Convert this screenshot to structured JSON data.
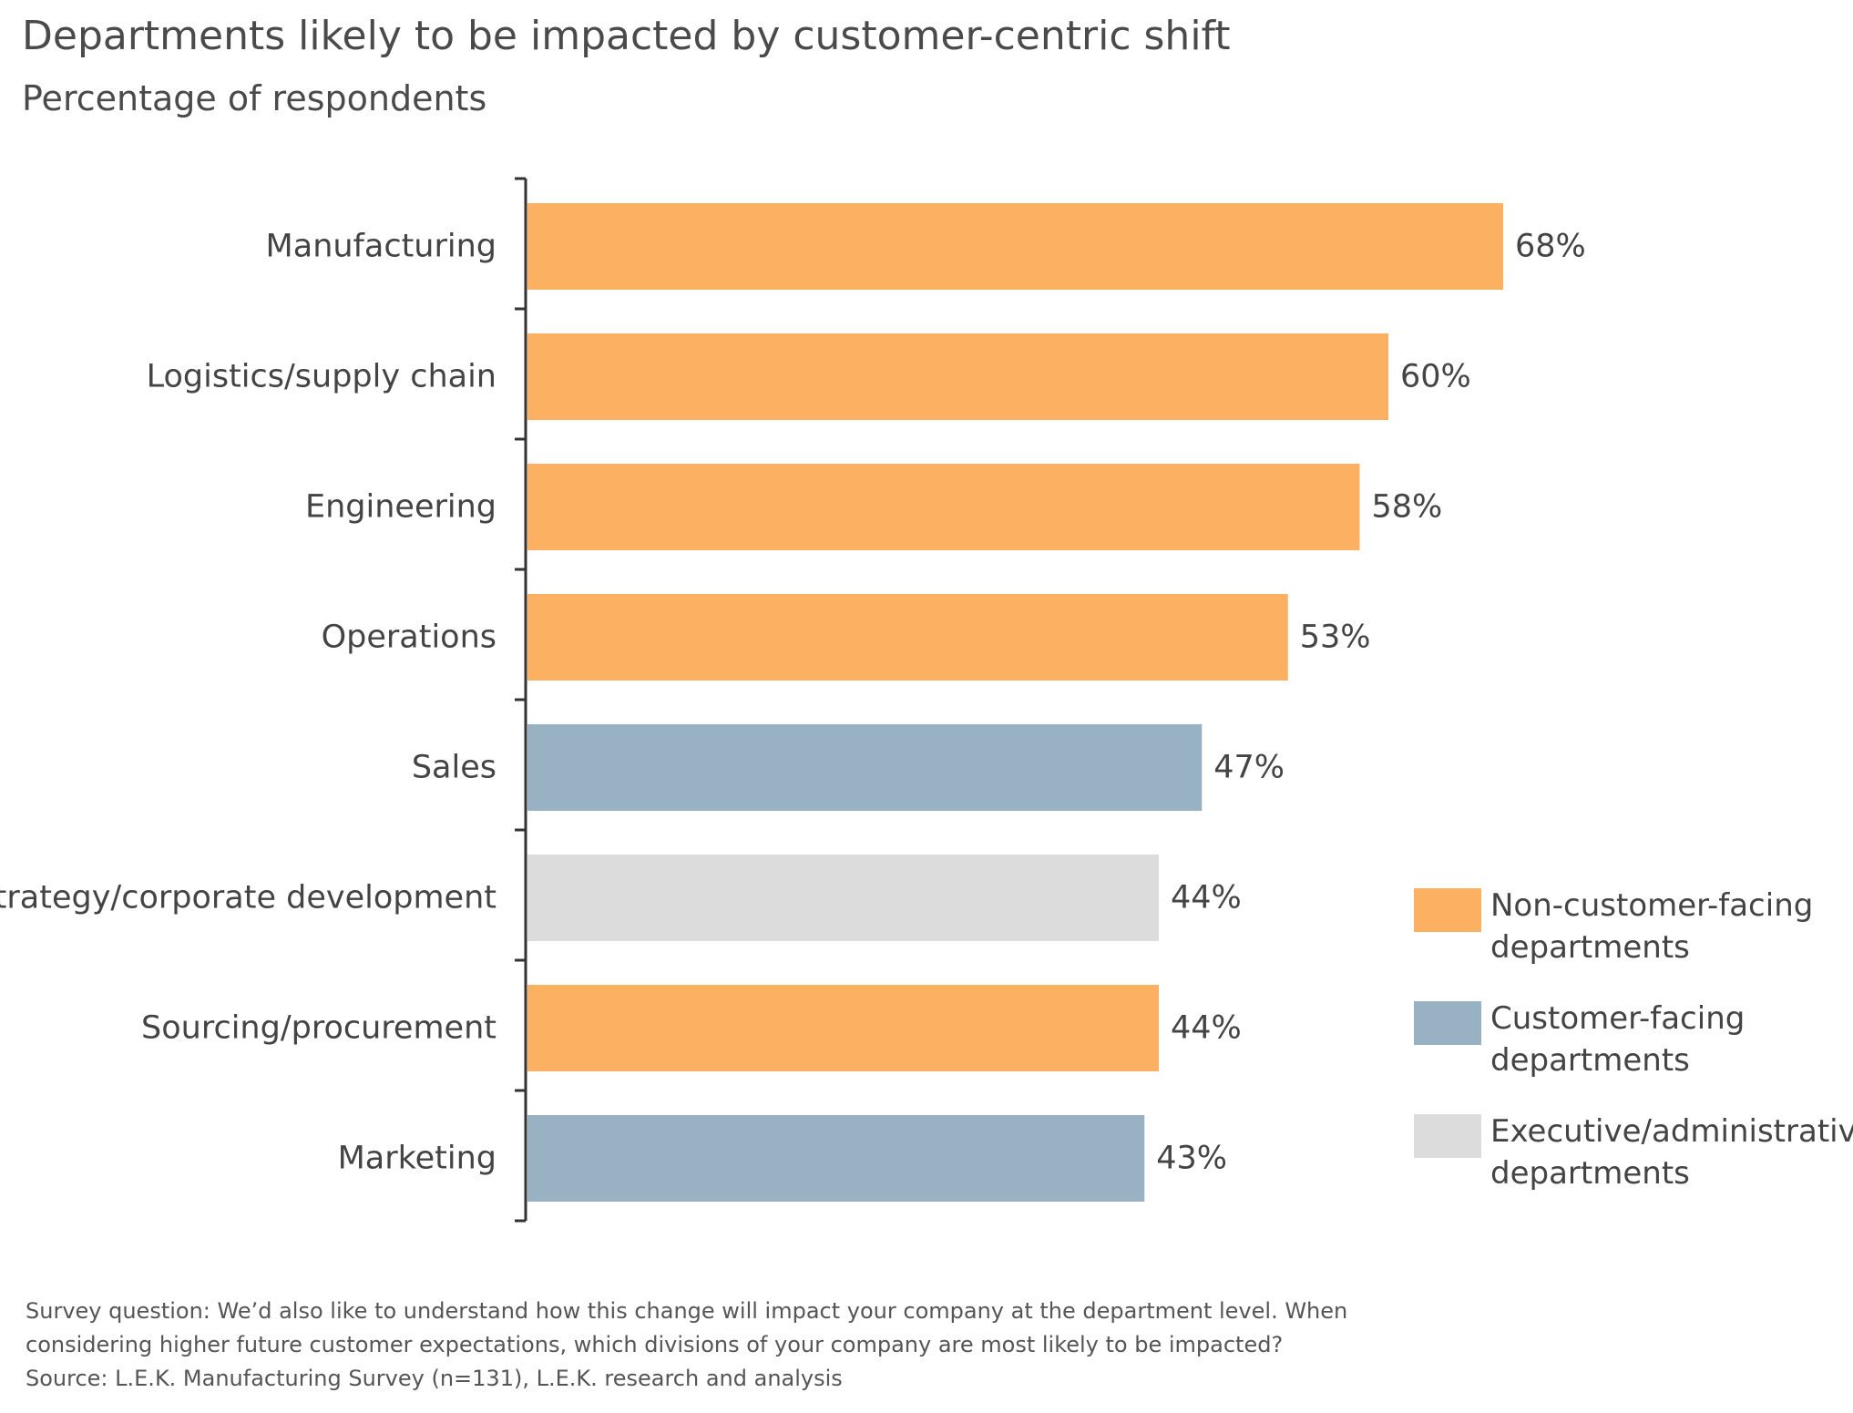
{
  "header": {
    "title": "Departments likely to be impacted by customer-centric shift",
    "subtitle": "Percentage of respondents"
  },
  "chart_data": {
    "type": "bar",
    "orientation": "horizontal",
    "title": "Departments likely to be impacted by customer-centric shift",
    "subtitle": "Percentage of respondents",
    "categories": [
      "Manufacturing",
      "Logistics/supply chain",
      "Engineering",
      "Operations",
      "Sales",
      "Strategy/corporate development",
      "Sourcing/procurement",
      "Marketing"
    ],
    "values": [
      68,
      60,
      58,
      53,
      47,
      44,
      44,
      43
    ],
    "value_labels": [
      "68%",
      "60%",
      "58%",
      "53%",
      "47%",
      "44%",
      "44%",
      "43%"
    ],
    "groups": [
      "non-customer",
      "non-customer",
      "non-customer",
      "non-customer",
      "customer",
      "executive",
      "non-customer",
      "customer"
    ],
    "unit": "%",
    "xlim": [
      0,
      68
    ],
    "grid": false,
    "legend_position": "right",
    "legend": [
      {
        "key": "non-customer",
        "label_line1": "Non-customer-facing",
        "label_line2": "departments",
        "color": "#FBB161"
      },
      {
        "key": "customer",
        "label_line1": "Customer-facing",
        "label_line2": "departments",
        "color": "#98B1C3"
      },
      {
        "key": "executive",
        "label_line1": "Executive/administrative",
        "label_line2": "departments",
        "color": "#DCDCDC"
      }
    ]
  },
  "footnote": {
    "line1": "Survey question: We’d also like to understand how this change will impact your company at the department level. When",
    "line2": "considering higher future customer expectations, which divisions of your company are most likely to be impacted?",
    "line3": "Source: L.E.K. Manufacturing Survey (n=131), L.E.K. research and analysis"
  }
}
